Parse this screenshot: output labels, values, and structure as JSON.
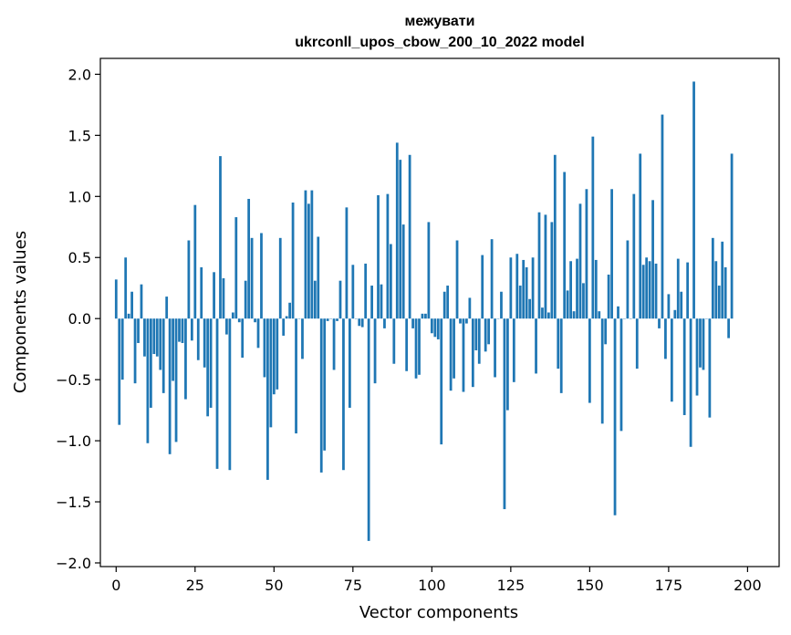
{
  "chart_data": {
    "type": "bar",
    "title_line1": "межувати",
    "title_line2": "ukrconll_upos_cbow_200_10_2022 model",
    "xlabel": "Vector components",
    "ylabel": "Components values",
    "xlim": [
      -5,
      210
    ],
    "ylim": [
      -2.03,
      2.13
    ],
    "xticks": [
      0,
      25,
      50,
      75,
      100,
      125,
      150,
      175,
      200
    ],
    "xtick_labels": [
      "0",
      "25",
      "50",
      "75",
      "100",
      "125",
      "150",
      "175",
      "200"
    ],
    "yticks": [
      2.0,
      1.5,
      1.0,
      0.5,
      0.0,
      -0.5,
      -1.0,
      -1.5,
      -2.0
    ],
    "ytick_labels": [
      "2.0",
      "1.5",
      "1.0",
      "0.5",
      "0.0",
      "−0.5",
      "−1.0",
      "−1.5",
      "−2.0"
    ],
    "bar_color": "#1f77b4",
    "grid": false,
    "values": [
      0.32,
      -0.87,
      -0.5,
      0.5,
      0.04,
      0.22,
      -0.53,
      -0.2,
      0.28,
      -0.31,
      -1.02,
      -0.73,
      -0.29,
      -0.31,
      -0.42,
      -0.61,
      0.18,
      -1.11,
      -0.51,
      -1.01,
      -0.19,
      -0.2,
      -0.66,
      0.64,
      -0.18,
      0.93,
      -0.34,
      0.42,
      -0.4,
      -0.8,
      -0.73,
      0.38,
      -1.23,
      1.33,
      0.33,
      -0.13,
      -1.24,
      0.05,
      0.83,
      -0.03,
      -0.32,
      0.31,
      0.98,
      0.66,
      -0.03,
      -0.24,
      0.7,
      -0.48,
      -1.32,
      -0.89,
      -0.62,
      -0.58,
      0.66,
      -0.14,
      0.02,
      0.13,
      0.95,
      -0.94,
      0.0,
      -0.33,
      1.05,
      0.94,
      1.05,
      0.31,
      0.67,
      -1.26,
      -1.08,
      -0.02,
      0.0,
      -0.42,
      -0.02,
      0.31,
      -1.24,
      0.91,
      -0.73,
      0.44,
      0.0,
      -0.06,
      -0.07,
      0.45,
      -1.82,
      0.27,
      -0.53,
      1.01,
      0.28,
      -0.08,
      1.02,
      0.61,
      -0.37,
      1.44,
      1.3,
      0.77,
      -0.43,
      1.34,
      -0.08,
      -0.49,
      -0.46,
      0.04,
      0.04,
      0.79,
      -0.12,
      -0.15,
      -0.17,
      -1.03,
      0.22,
      0.27,
      -0.59,
      -0.49,
      0.64,
      -0.04,
      -0.6,
      -0.04,
      0.17,
      -0.56,
      -0.26,
      -0.37,
      0.52,
      -0.27,
      -0.21,
      0.65,
      -0.48,
      0.0,
      0.22,
      -1.56,
      -0.75,
      0.5,
      -0.52,
      0.53,
      0.27,
      0.48,
      0.42,
      0.16,
      0.5,
      -0.45,
      0.87,
      0.09,
      0.85,
      0.05,
      0.79,
      1.34,
      -0.41,
      -0.61,
      1.2,
      0.23,
      0.47,
      0.06,
      0.49,
      0.94,
      0.29,
      1.06,
      -0.69,
      1.49,
      0.48,
      0.06,
      -0.86,
      -0.21,
      0.36,
      1.06,
      -1.61,
      0.1,
      -0.92,
      0.0,
      0.64,
      0.0,
      1.02,
      -0.41,
      1.35,
      0.44,
      0.5,
      0.47,
      0.97,
      0.45,
      -0.08,
      1.67,
      -0.33,
      0.2,
      -0.68,
      0.07,
      0.49,
      0.22,
      -0.79,
      0.46,
      -1.05,
      1.94,
      -0.63,
      -0.4,
      -0.42,
      0.0,
      -0.81,
      0.66,
      0.47,
      0.27,
      0.63,
      0.42,
      -0.16,
      1.35
    ]
  }
}
